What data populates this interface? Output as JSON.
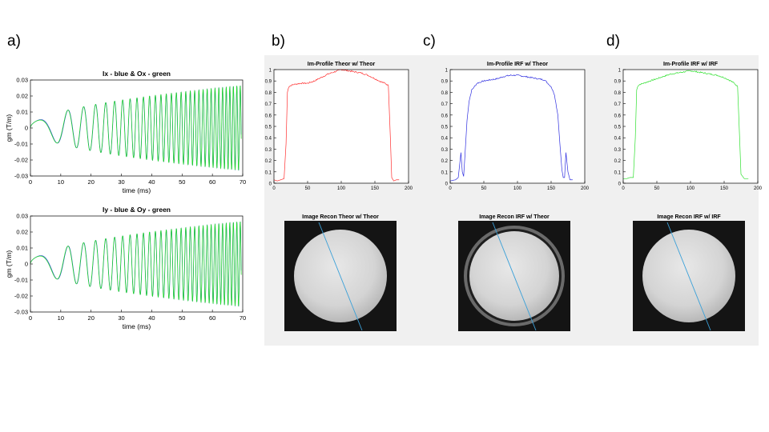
{
  "letters": {
    "a": "a)",
    "b": "b)",
    "c": "c)",
    "d": "d)"
  },
  "chart_data": [
    {
      "id": "ix",
      "type": "line",
      "title": "Ix - blue & Ox - green",
      "xlabel": "time (ms)",
      "ylabel": "gm (T/m)",
      "xlim": [
        0,
        70
      ],
      "ylim": [
        -0.03,
        0.03
      ],
      "xticks": [
        0,
        10,
        20,
        30,
        40,
        50,
        60,
        70
      ],
      "yticks": [
        -0.03,
        -0.02,
        -0.01,
        0,
        0.01,
        0.02,
        0.03
      ],
      "xtick_labels": [
        "0",
        "10",
        "20",
        "30",
        "40",
        "50",
        "60",
        "70"
      ],
      "ytick_labels": [
        "-0.03",
        "-0.02",
        "-0.01",
        "0",
        "0.01",
        "0.02",
        "0.03"
      ],
      "series_colors": {
        "I": "#2040d0",
        "O": "#20e020"
      },
      "amplitude_end": 0.026,
      "cycles_per_ms_end": 0.9
    },
    {
      "id": "iy",
      "type": "line",
      "title": "Iy - blue & Oy - green",
      "xlabel": "time (ms)",
      "ylabel": "gm (T/m)",
      "xlim": [
        0,
        70
      ],
      "ylim": [
        -0.03,
        0.03
      ],
      "xticks": [
        0,
        10,
        20,
        30,
        40,
        50,
        60,
        70
      ],
      "yticks": [
        -0.03,
        -0.02,
        -0.01,
        0,
        0.01,
        0.02,
        0.03
      ],
      "xtick_labels": [
        "0",
        "10",
        "20",
        "30",
        "40",
        "50",
        "60",
        "70"
      ],
      "ytick_labels": [
        "-0.03",
        "-0.02",
        "-0.01",
        "0",
        "0.01",
        "0.02",
        "0.03"
      ],
      "series_colors": {
        "I": "#2040d0",
        "O": "#20e020"
      },
      "amplitude_end": 0.026,
      "cycles_per_ms_end": 0.9
    },
    {
      "id": "prof-b",
      "type": "line",
      "title": "Im-Profile Theor w/ Theor",
      "xlim": [
        0,
        200
      ],
      "ylim": [
        0,
        1
      ],
      "xticks": [
        0,
        50,
        100,
        150,
        200
      ],
      "yticks": [
        0,
        0.1,
        0.2,
        0.3,
        0.4,
        0.5,
        0.6,
        0.7,
        0.8,
        0.9,
        1
      ],
      "xtick_labels": [
        "0",
        "50",
        "100",
        "150",
        "200"
      ],
      "ytick_labels": [
        "0",
        "0.1",
        "0.2",
        "0.3",
        "0.4",
        "0.5",
        "0.6",
        "0.7",
        "0.8",
        "0.9",
        "1"
      ],
      "color": "#ff3030",
      "x": [
        0,
        5,
        10,
        15,
        18,
        20,
        22,
        25,
        30,
        40,
        50,
        60,
        70,
        80,
        90,
        100,
        110,
        120,
        130,
        140,
        150,
        160,
        165,
        170,
        173,
        175,
        178,
        182,
        186
      ],
      "y": [
        0.03,
        0.02,
        0.03,
        0.04,
        0.35,
        0.8,
        0.85,
        0.86,
        0.87,
        0.88,
        0.88,
        0.9,
        0.93,
        0.96,
        0.98,
        1.0,
        0.99,
        0.98,
        0.97,
        0.95,
        0.92,
        0.89,
        0.88,
        0.86,
        0.4,
        0.05,
        0.02,
        0.03,
        0.03
      ]
    },
    {
      "id": "prof-c",
      "type": "line",
      "title": "Im-Profile IRF w/ Theor",
      "xlim": [
        0,
        200
      ],
      "ylim": [
        0,
        1
      ],
      "xticks": [
        0,
        50,
        100,
        150,
        200
      ],
      "yticks": [
        0,
        0.1,
        0.2,
        0.3,
        0.4,
        0.5,
        0.6,
        0.7,
        0.8,
        0.9,
        1
      ],
      "xtick_labels": [
        "0",
        "50",
        "100",
        "150",
        "200"
      ],
      "ytick_labels": [
        "0",
        "0.1",
        "0.2",
        "0.3",
        "0.4",
        "0.5",
        "0.6",
        "0.7",
        "0.8",
        "0.9",
        "1"
      ],
      "color": "#3030e0",
      "x": [
        0,
        8,
        12,
        16,
        18,
        20,
        22,
        25,
        28,
        32,
        40,
        50,
        60,
        70,
        80,
        90,
        100,
        110,
        120,
        130,
        140,
        150,
        155,
        160,
        163,
        166,
        168,
        170,
        172,
        175,
        178,
        182
      ],
      "y": [
        0.02,
        0.03,
        0.05,
        0.27,
        0.1,
        0.06,
        0.25,
        0.55,
        0.72,
        0.82,
        0.88,
        0.9,
        0.91,
        0.92,
        0.94,
        0.95,
        0.95,
        0.94,
        0.93,
        0.92,
        0.91,
        0.85,
        0.78,
        0.6,
        0.35,
        0.12,
        0.05,
        0.05,
        0.27,
        0.1,
        0.03,
        0.03
      ]
    },
    {
      "id": "prof-d",
      "type": "line",
      "title": "Im-Profile IRF w/ IRF",
      "xlim": [
        0,
        200
      ],
      "ylim": [
        0,
        1
      ],
      "xticks": [
        0,
        50,
        100,
        150,
        200
      ],
      "yticks": [
        0,
        0.1,
        0.2,
        0.3,
        0.4,
        0.5,
        0.6,
        0.7,
        0.8,
        0.9,
        1
      ],
      "xtick_labels": [
        "0",
        "50",
        "100",
        "150",
        "200"
      ],
      "ytick_labels": [
        "0",
        "0.1",
        "0.2",
        "0.3",
        "0.4",
        "0.5",
        "0.6",
        "0.7",
        "0.8",
        "0.9",
        "1"
      ],
      "color": "#30e030",
      "x": [
        0,
        5,
        10,
        15,
        18,
        20,
        22,
        25,
        30,
        40,
        50,
        60,
        70,
        80,
        90,
        100,
        110,
        120,
        130,
        140,
        150,
        160,
        165,
        170,
        173,
        175,
        180,
        186
      ],
      "y": [
        0.04,
        0.04,
        0.05,
        0.05,
        0.4,
        0.82,
        0.86,
        0.87,
        0.88,
        0.9,
        0.92,
        0.94,
        0.96,
        0.97,
        0.98,
        0.99,
        0.98,
        0.97,
        0.96,
        0.95,
        0.93,
        0.9,
        0.88,
        0.85,
        0.4,
        0.08,
        0.04,
        0.04
      ]
    }
  ],
  "images": [
    {
      "id": "img-b",
      "title": "Image Recon Theor w/ Theor",
      "ring": false
    },
    {
      "id": "img-c",
      "title": "Image Recon IRF w/ Theor",
      "ring": true
    },
    {
      "id": "img-d",
      "title": "Image Recon IRF w/ IRF",
      "ring": false
    }
  ]
}
